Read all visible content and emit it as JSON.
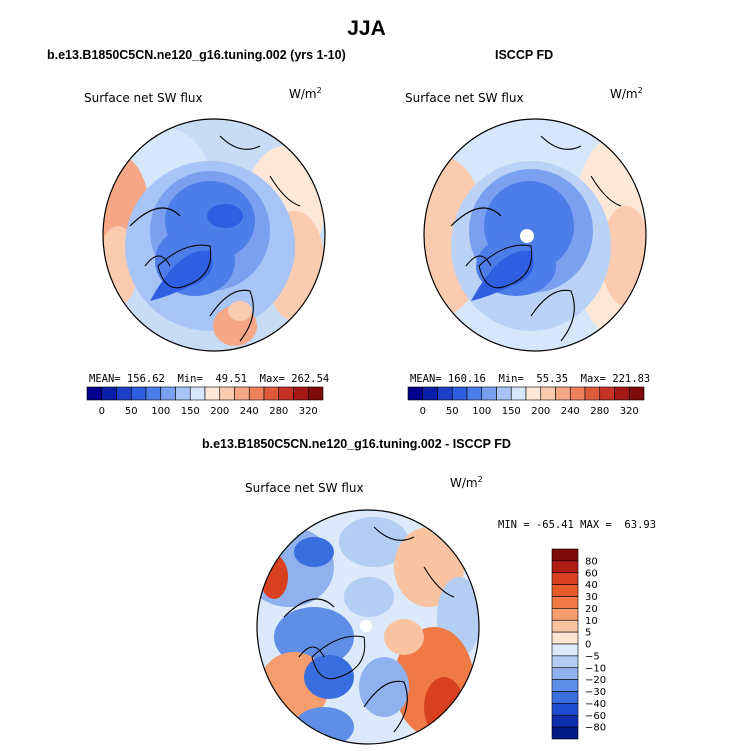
{
  "page_title": "JJA",
  "panels": [
    {
      "header": "b.e13.B1850C5CN.ne120_g16.tuning.002 (yrs 1-10)",
      "variable": "Surface net SW flux",
      "units": "W/m",
      "units_exp": "2",
      "stats": "MEAN= 156.62  Min=  49.51  Max= 262.54"
    },
    {
      "header": "ISCCP FD",
      "variable": "Surface net SW flux",
      "units": "W/m",
      "units_exp": "2",
      "stats": "MEAN= 160.16  Min=  55.35  Max= 221.83"
    },
    {
      "header": "b.e13.B1850C5CN.ne120_g16.tuning.002 - ISCCP FD",
      "variable": "Surface net SW flux",
      "units": "W/m",
      "units_exp": "2",
      "stats": "MIN = -65.41 MAX =  63.93"
    }
  ],
  "colorbar_horizontal": {
    "labels": [
      "0",
      "50",
      "100",
      "150",
      "200",
      "240",
      "280",
      "320"
    ],
    "colors": [
      "#00008b",
      "#0a1fa8",
      "#1c3fc6",
      "#2f5ee0",
      "#4d7de8",
      "#7aa0ef",
      "#a6c4f5",
      "#d6e6fb",
      "#fde8d8",
      "#fbcbb0",
      "#f6a785",
      "#ee825e",
      "#de5a3e",
      "#c43324",
      "#a51815",
      "#7e0a0a"
    ]
  },
  "colorbar_vertical": {
    "labels": [
      "80",
      "60",
      "40",
      "30",
      "20",
      "10",
      "5",
      "0",
      "−5",
      "−10",
      "−20",
      "−30",
      "−40",
      "−60",
      "−80"
    ],
    "colors": [
      "#7e0a0a",
      "#b01d12",
      "#d9401f",
      "#e85a2a",
      "#f07a45",
      "#f59d6e",
      "#f9c2a0",
      "#fde5d2",
      "#dbe9fa",
      "#b3cdf3",
      "#8fb2ee",
      "#5f8ee6",
      "#3a6ddd",
      "#1f4fd0",
      "#0f2fae",
      "#001a85"
    ]
  },
  "colors": {
    "land_outline": "#000000",
    "low": "#2557d6",
    "high": "#f2a07a"
  }
}
